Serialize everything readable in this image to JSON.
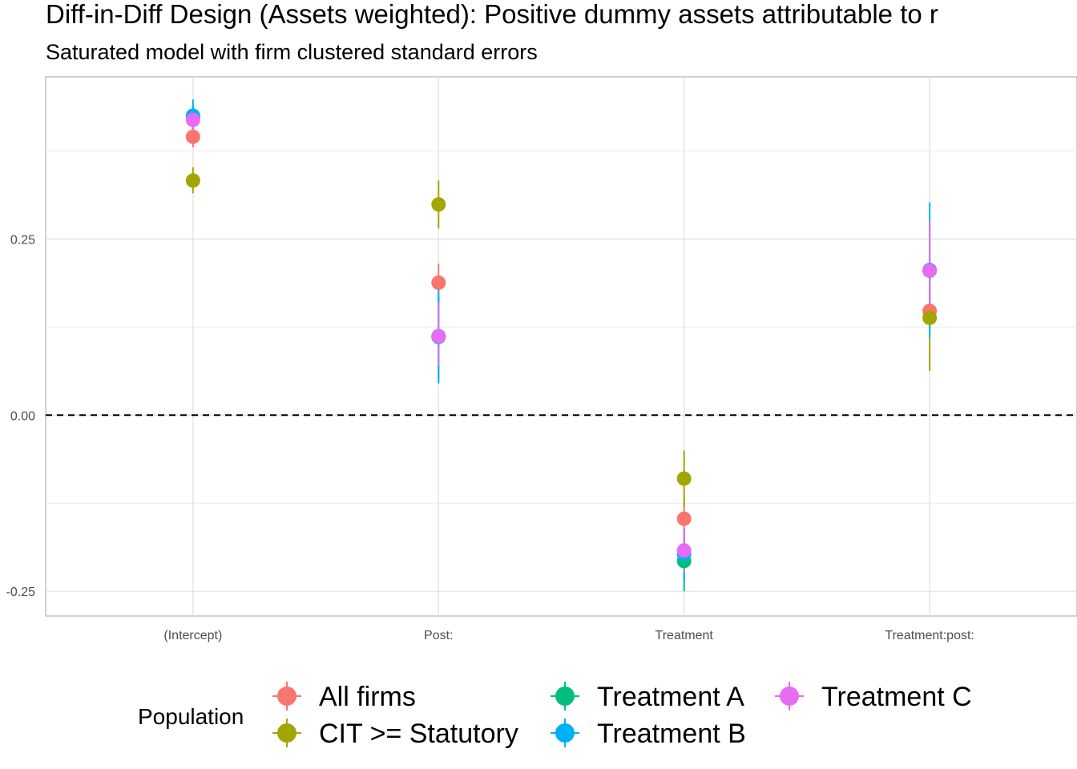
{
  "chart_data": {
    "type": "scatter",
    "title": "Diff-in-Diff Design (Assets weighted): Positive dummy assets attributable to r",
    "subtitle": "Saturated model with firm clustered standard errors",
    "xlabel": "",
    "ylabel": "",
    "categories": [
      "(Intercept)",
      "Post:",
      "Treatment",
      "Treatment:post:"
    ],
    "ylim": [
      -0.285,
      0.48
    ],
    "yticks": [
      -0.25,
      0.0,
      0.25
    ],
    "ytick_labels": [
      "-0.25",
      "0.00",
      "0.25"
    ],
    "reference_line": 0,
    "grid": true,
    "legend_title": "Population",
    "legend_position": "bottom",
    "series": [
      {
        "name": "All firms",
        "color": "#F8766D",
        "values": [
          0.395,
          0.188,
          -0.147,
          0.148
        ],
        "lower": [
          0.38,
          0.16,
          -0.175,
          0.12
        ],
        "upper": [
          0.41,
          0.215,
          -0.12,
          0.175
        ]
      },
      {
        "name": "CIT >= Statutory",
        "color": "#A3A500",
        "values": [
          0.333,
          0.299,
          -0.09,
          0.138
        ],
        "lower": [
          0.315,
          0.265,
          -0.13,
          0.063
        ],
        "upper": [
          0.352,
          0.333,
          -0.05,
          0.215
        ]
      },
      {
        "name": "Treatment A",
        "color": "#00BF7D",
        "values": [
          0.423,
          0.112,
          -0.207,
          0.205
        ],
        "lower": [
          0.405,
          0.05,
          -0.25,
          0.14
        ],
        "upper": [
          0.44,
          0.17,
          -0.165,
          0.27
        ]
      },
      {
        "name": "Treatment B",
        "color": "#00B0F6",
        "values": [
          0.425,
          0.111,
          -0.197,
          0.206
        ],
        "lower": [
          0.4,
          0.045,
          -0.235,
          0.11
        ],
        "upper": [
          0.448,
          0.18,
          -0.16,
          0.302
        ]
      },
      {
        "name": "Treatment C",
        "color": "#E76BF3",
        "values": [
          0.419,
          0.112,
          -0.192,
          0.205
        ],
        "lower": [
          0.405,
          0.07,
          -0.222,
          0.135
        ],
        "upper": [
          0.433,
          0.16,
          -0.16,
          0.275
        ]
      }
    ]
  }
}
